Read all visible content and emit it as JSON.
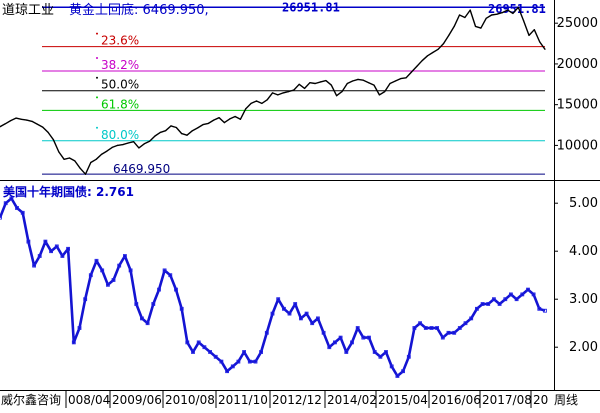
{
  "colors": {
    "bg": "#ffffff",
    "axis": "#000000",
    "dow_line": "#000000",
    "yield_line": "#1414d2",
    "yield_marker": "#1e1ee6",
    "high_line": "#0000c8",
    "low_line": "#000080",
    "fib_23_6": "#c80000",
    "fib_38_2": "#c800c8",
    "fib_50_0": "#000000",
    "fib_61_8": "#00c800",
    "fib_80_0": "#00c8c8",
    "title_blue": "#0000c8"
  },
  "header": {
    "instrument": "道琼工业",
    "indicator": "黄金上回底:",
    "indicator_value": "6469.950,"
  },
  "high_label_left": "26951.81",
  "high_label_right": "26951.81",
  "low_label": "6469.950",
  "fib_levels": [
    {
      "label": "23.6%",
      "color_key": "fib_23_6",
      "value": 22118.7
    },
    {
      "label": "38.2%",
      "color_key": "fib_38_2",
      "value": 19127.5
    },
    {
      "label": "50.0%",
      "color_key": "fib_50_0",
      "value": 16710.9
    },
    {
      "label": "61.8%",
      "color_key": "fib_61_8",
      "value": 14294.3
    },
    {
      "label": "80.0%",
      "color_key": "fib_80_0",
      "value": 10566.3
    }
  ],
  "lower_header": {
    "label": "美国十年期国债:",
    "value": "2.761"
  },
  "x_axis": {
    "source": "威尔鑫咨询",
    "ticks": [
      "008/04",
      "2009/06",
      "2010/08",
      "2011/10",
      "2012/12",
      "2014/02",
      "2015/04",
      "2016/06",
      "2017/08",
      "20"
    ],
    "unit": "周线"
  },
  "chart_data": [
    {
      "type": "line",
      "title": "道琼工业",
      "ylabel": "",
      "ylim": [
        6000,
        27600
      ],
      "yticks": [
        10000,
        15000,
        20000,
        25000
      ],
      "grid": false,
      "series": [
        {
          "name": "道琼工业",
          "values": [
            12300,
            12650,
            13050,
            13350,
            13200,
            13100,
            12950,
            12600,
            12250,
            11600,
            10700,
            9200,
            8300,
            8450,
            8100,
            7200,
            6470,
            7900,
            8300,
            8900,
            9300,
            9750,
            10000,
            10100,
            10300,
            10450,
            9700,
            10200,
            10500,
            11150,
            11600,
            11800,
            12400,
            12200,
            11450,
            11250,
            11800,
            12150,
            12550,
            12700,
            13100,
            13400,
            12800,
            13250,
            13550,
            13200,
            14500,
            15150,
            15450,
            15150,
            15600,
            16450,
            16200,
            16450,
            16600,
            16800,
            17500,
            17000,
            17700,
            17600,
            17800,
            17950,
            17400,
            16100,
            16600,
            17600,
            17900,
            18100,
            18000,
            17700,
            17400,
            16200,
            16600,
            17600,
            17900,
            18200,
            18300,
            19000,
            19700,
            20400,
            21000,
            21400,
            21800,
            22500,
            23500,
            24600,
            26000,
            25700,
            26600,
            24600,
            24400,
            25600,
            26000,
            26100,
            26300,
            26600,
            26200,
            26951.81,
            25300,
            23500,
            24200,
            22700,
            21800
          ]
        }
      ]
    },
    {
      "type": "line",
      "title": "美国十年期国债",
      "ylabel": "",
      "ylim": [
        1.15,
        5.4
      ],
      "yticks": [
        2.0,
        3.0,
        4.0,
        5.0
      ],
      "grid": false,
      "series": [
        {
          "name": "美国十年期国债",
          "values": [
            4.7,
            5.0,
            5.1,
            4.9,
            4.8,
            4.2,
            3.7,
            3.9,
            4.2,
            4.0,
            4.1,
            3.9,
            4.05,
            2.1,
            2.4,
            3.0,
            3.5,
            3.8,
            3.6,
            3.3,
            3.4,
            3.7,
            3.9,
            3.6,
            2.9,
            2.6,
            2.5,
            2.9,
            3.2,
            3.6,
            3.5,
            3.2,
            2.8,
            2.1,
            1.9,
            2.1,
            2.0,
            1.9,
            1.8,
            1.7,
            1.5,
            1.6,
            1.7,
            1.9,
            1.7,
            1.7,
            1.9,
            2.3,
            2.7,
            3.0,
            2.8,
            2.7,
            2.9,
            2.6,
            2.7,
            2.5,
            2.6,
            2.3,
            2.0,
            2.1,
            2.2,
            1.9,
            2.1,
            2.4,
            2.2,
            2.2,
            1.9,
            1.8,
            1.9,
            1.6,
            1.4,
            1.5,
            1.8,
            2.4,
            2.5,
            2.4,
            2.4,
            2.4,
            2.2,
            2.3,
            2.3,
            2.4,
            2.5,
            2.6,
            2.8,
            2.9,
            2.9,
            3.0,
            2.9,
            3.0,
            3.1,
            3.0,
            3.1,
            3.2,
            3.1,
            2.8,
            2.761
          ]
        }
      ]
    }
  ]
}
